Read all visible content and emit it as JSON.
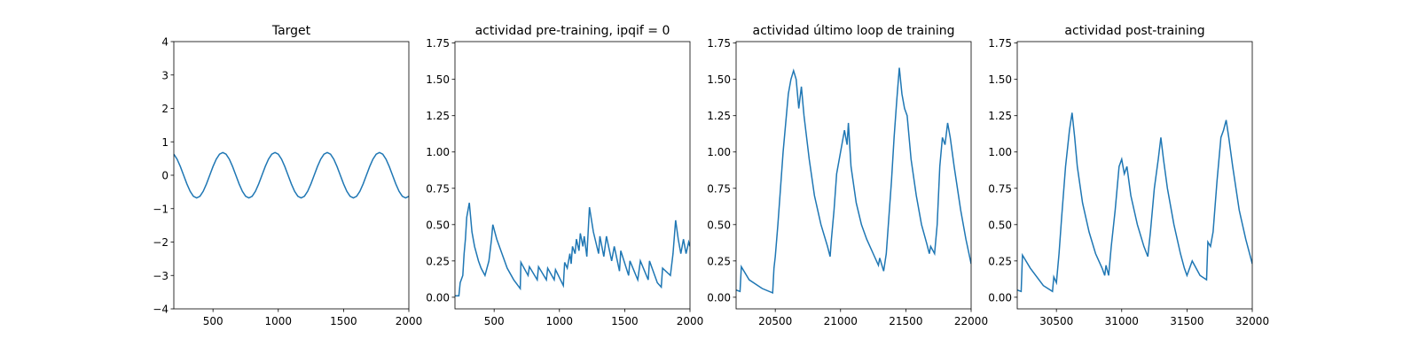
{
  "chart_data": [
    {
      "type": "line",
      "title": "Target",
      "color": "#1f77b4",
      "xlim": [
        200,
        2000
      ],
      "xticks": [
        500,
        1000,
        1500,
        2000
      ],
      "ylim": [
        -4,
        4
      ],
      "yticks": [
        {
          "value": -4,
          "label": "−4"
        },
        {
          "value": -3,
          "label": "−3"
        },
        {
          "value": -2,
          "label": "−2"
        },
        {
          "value": -1,
          "label": "−1"
        },
        0,
        1,
        2,
        3,
        4
      ],
      "x": [
        200,
        225,
        250,
        275,
        300,
        325,
        350,
        375,
        400,
        425,
        450,
        475,
        500,
        525,
        550,
        575,
        600,
        625,
        650,
        675,
        700,
        725,
        750,
        775,
        800,
        825,
        850,
        875,
        900,
        925,
        950,
        975,
        1000,
        1025,
        1050,
        1075,
        1100,
        1125,
        1150,
        1175,
        1200,
        1225,
        1250,
        1275,
        1300,
        1325,
        1350,
        1375,
        1400,
        1425,
        1450,
        1475,
        1500,
        1525,
        1550,
        1575,
        1600,
        1625,
        1650,
        1675,
        1700,
        1725,
        1750,
        1775,
        1800,
        1825,
        1850,
        1875,
        1900,
        1925,
        1950,
        1975,
        2000
      ],
      "values": [
        0.63,
        0.48,
        0.26,
        0,
        -0.26,
        -0.48,
        -0.63,
        -0.68,
        -0.63,
        -0.48,
        -0.26,
        0,
        0.26,
        0.48,
        0.63,
        0.68,
        0.63,
        0.48,
        0.26,
        0,
        -0.26,
        -0.48,
        -0.63,
        -0.68,
        -0.63,
        -0.48,
        -0.26,
        0,
        0.26,
        0.48,
        0.63,
        0.68,
        0.63,
        0.48,
        0.26,
        0,
        -0.26,
        -0.48,
        -0.63,
        -0.68,
        -0.63,
        -0.48,
        -0.26,
        0,
        0.26,
        0.48,
        0.63,
        0.68,
        0.63,
        0.48,
        0.26,
        0,
        -0.26,
        -0.48,
        -0.63,
        -0.68,
        -0.63,
        -0.48,
        -0.26,
        0,
        0.26,
        0.48,
        0.63,
        0.68,
        0.63,
        0.48,
        0.26,
        0,
        -0.26,
        -0.48,
        -0.63,
        -0.68,
        -0.63
      ]
    },
    {
      "type": "line",
      "title": "actividad pre-training, ipqif = 0",
      "color": "#1f77b4",
      "xlim": [
        200,
        2000
      ],
      "xticks": [
        500,
        1000,
        1500,
        2000
      ],
      "ylim": [
        -0.08,
        1.76
      ],
      "yticks": [
        {
          "value": 0,
          "label": "0.00"
        },
        0.25,
        {
          "value": 0.5,
          "label": "0.50"
        },
        0.75,
        {
          "value": 1,
          "label": "1.00"
        },
        1.25,
        {
          "value": 1.5,
          "label": "1.50"
        },
        1.75
      ],
      "x": [
        200,
        230,
        240,
        260,
        270,
        280,
        290,
        300,
        310,
        320,
        330,
        350,
        380,
        400,
        430,
        460,
        480,
        490,
        520,
        560,
        600,
        650,
        700,
        705,
        760,
        770,
        830,
        840,
        900,
        910,
        960,
        970,
        1030,
        1040,
        1060,
        1080,
        1090,
        1100,
        1120,
        1130,
        1150,
        1160,
        1180,
        1190,
        1210,
        1230,
        1260,
        1300,
        1310,
        1340,
        1360,
        1400,
        1420,
        1460,
        1470,
        1530,
        1540,
        1600,
        1620,
        1680,
        1690,
        1750,
        1780,
        1790,
        1850,
        1870,
        1890,
        1910,
        1930,
        1950,
        1970,
        1990,
        2000
      ],
      "values": [
        0.01,
        0.01,
        0.1,
        0.15,
        0.3,
        0.4,
        0.55,
        0.6,
        0.65,
        0.55,
        0.45,
        0.35,
        0.25,
        0.2,
        0.15,
        0.25,
        0.4,
        0.5,
        0.4,
        0.3,
        0.2,
        0.12,
        0.06,
        0.24,
        0.15,
        0.21,
        0.12,
        0.21,
        0.12,
        0.2,
        0.12,
        0.19,
        0.08,
        0.24,
        0.2,
        0.3,
        0.23,
        0.35,
        0.3,
        0.4,
        0.32,
        0.44,
        0.35,
        0.42,
        0.28,
        0.62,
        0.45,
        0.3,
        0.42,
        0.28,
        0.42,
        0.25,
        0.35,
        0.18,
        0.32,
        0.15,
        0.25,
        0.12,
        0.25,
        0.12,
        0.25,
        0.1,
        0.07,
        0.2,
        0.15,
        0.3,
        0.53,
        0.4,
        0.3,
        0.4,
        0.3,
        0.38,
        0.35
      ]
    },
    {
      "type": "line",
      "title": "actividad último loop de training",
      "color": "#1f77b4",
      "xlim": [
        20200,
        22000
      ],
      "xticks": [
        20500,
        21000,
        21500,
        22000
      ],
      "ylim": [
        -0.08,
        1.76
      ],
      "yticks": [
        {
          "value": 0,
          "label": "0.00"
        },
        0.25,
        {
          "value": 0.5,
          "label": "0.50"
        },
        0.75,
        {
          "value": 1,
          "label": "1.00"
        },
        1.25,
        {
          "value": 1.5,
          "label": "1.50"
        },
        1.75
      ],
      "x": [
        20200,
        20230,
        20240,
        20300,
        20400,
        20480,
        20490,
        20500,
        20520,
        20540,
        20560,
        20580,
        20600,
        20620,
        20640,
        20660,
        20680,
        20700,
        20720,
        20760,
        20800,
        20850,
        20900,
        20920,
        20930,
        20950,
        20970,
        21000,
        21030,
        21050,
        21060,
        21080,
        21120,
        21160,
        21200,
        21250,
        21290,
        21300,
        21330,
        21350,
        21370,
        21390,
        21410,
        21430,
        21450,
        21470,
        21490,
        21510,
        21540,
        21580,
        21620,
        21660,
        21680,
        21690,
        21720,
        21740,
        21760,
        21780,
        21800,
        21820,
        21840,
        21870,
        21920,
        21960,
        22000
      ],
      "values": [
        0.05,
        0.04,
        0.21,
        0.12,
        0.06,
        0.03,
        0.2,
        0.28,
        0.5,
        0.75,
        1.0,
        1.2,
        1.4,
        1.5,
        1.56,
        1.5,
        1.3,
        1.45,
        1.25,
        0.95,
        0.7,
        0.5,
        0.35,
        0.28,
        0.4,
        0.6,
        0.85,
        1.0,
        1.15,
        1.05,
        1.2,
        0.9,
        0.65,
        0.5,
        0.4,
        0.3,
        0.22,
        0.27,
        0.18,
        0.3,
        0.55,
        0.8,
        1.1,
        1.35,
        1.58,
        1.4,
        1.3,
        1.25,
        0.95,
        0.7,
        0.5,
        0.37,
        0.3,
        0.35,
        0.3,
        0.5,
        0.9,
        1.1,
        1.05,
        1.2,
        1.1,
        0.9,
        0.6,
        0.4,
        0.23
      ]
    },
    {
      "type": "line",
      "title": "actividad post-training",
      "color": "#1f77b4",
      "xlim": [
        30200,
        32000
      ],
      "xticks": [
        30500,
        31000,
        31500,
        32000
      ],
      "ylim": [
        -0.08,
        1.76
      ],
      "yticks": [
        {
          "value": 0,
          "label": "0.00"
        },
        0.25,
        {
          "value": 0.5,
          "label": "0.50"
        },
        0.75,
        {
          "value": 1,
          "label": "1.00"
        },
        1.25,
        {
          "value": 1.5,
          "label": "1.50"
        },
        1.75
      ],
      "x": [
        30200,
        30230,
        30240,
        30300,
        30400,
        30470,
        30480,
        30500,
        30520,
        30540,
        30570,
        30600,
        30620,
        30640,
        30660,
        30700,
        30750,
        30800,
        30850,
        30870,
        30880,
        30900,
        30920,
        30950,
        30980,
        31000,
        31020,
        31040,
        31070,
        31120,
        31170,
        31200,
        31220,
        31250,
        31280,
        31300,
        31320,
        31350,
        31400,
        31450,
        31480,
        31500,
        31540,
        31600,
        31650,
        31660,
        31680,
        31700,
        31730,
        31760,
        31780,
        31800,
        31820,
        31850,
        31900,
        31950,
        32000
      ],
      "values": [
        0.05,
        0.04,
        0.29,
        0.2,
        0.08,
        0.04,
        0.14,
        0.1,
        0.3,
        0.55,
        0.9,
        1.15,
        1.27,
        1.1,
        0.9,
        0.65,
        0.45,
        0.3,
        0.2,
        0.15,
        0.22,
        0.15,
        0.35,
        0.6,
        0.9,
        0.95,
        0.85,
        0.9,
        0.7,
        0.5,
        0.35,
        0.28,
        0.45,
        0.75,
        0.95,
        1.1,
        0.95,
        0.75,
        0.5,
        0.3,
        0.2,
        0.15,
        0.25,
        0.15,
        0.12,
        0.38,
        0.35,
        0.45,
        0.8,
        1.1,
        1.15,
        1.22,
        1.1,
        0.9,
        0.6,
        0.4,
        0.23
      ]
    }
  ]
}
